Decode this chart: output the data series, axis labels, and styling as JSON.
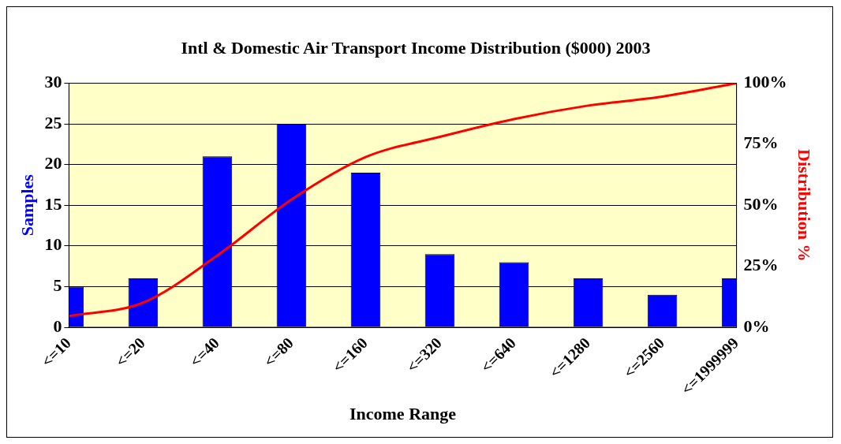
{
  "chart_data": {
    "type": "bar",
    "title": "Intl & Domestic Air Transport Income Distribution ($000) 2003",
    "xlabel": "Income Range",
    "ylabel": "Samples",
    "y2label": "Distribution %",
    "categories": [
      "<=10",
      "<=20",
      "<=40",
      "<=80",
      "<=160",
      "<=320",
      "<=640",
      "<=1280",
      "<=2560",
      "<=1999999"
    ],
    "series": [
      {
        "color": "#0000ff",
        "values": [
          5,
          6,
          21,
          25,
          19,
          9,
          8,
          6,
          4,
          6
        ]
      },
      {
        "type": "line",
        "axis": "y2",
        "color": "#ff0000",
        "values": [
          4.6,
          10.1,
          29.4,
          52.3,
          69.7,
          78,
          85.3,
          90.8,
          94.5,
          100
        ]
      }
    ],
    "ylim": [
      0,
      30
    ],
    "yticks": [
      0,
      5,
      10,
      15,
      20,
      25,
      30
    ],
    "y2lim": [
      0,
      100
    ],
    "y2ticks": [
      {
        "value": 0,
        "label": "0%"
      },
      {
        "value": 25,
        "label": "25%"
      },
      {
        "value": 50,
        "label": "50%"
      },
      {
        "value": 75,
        "label": "75%"
      },
      {
        "value": 100,
        "label": "100%"
      }
    ],
    "grid": "y",
    "legend": false,
    "marker": "none",
    "line_style": "solid"
  }
}
